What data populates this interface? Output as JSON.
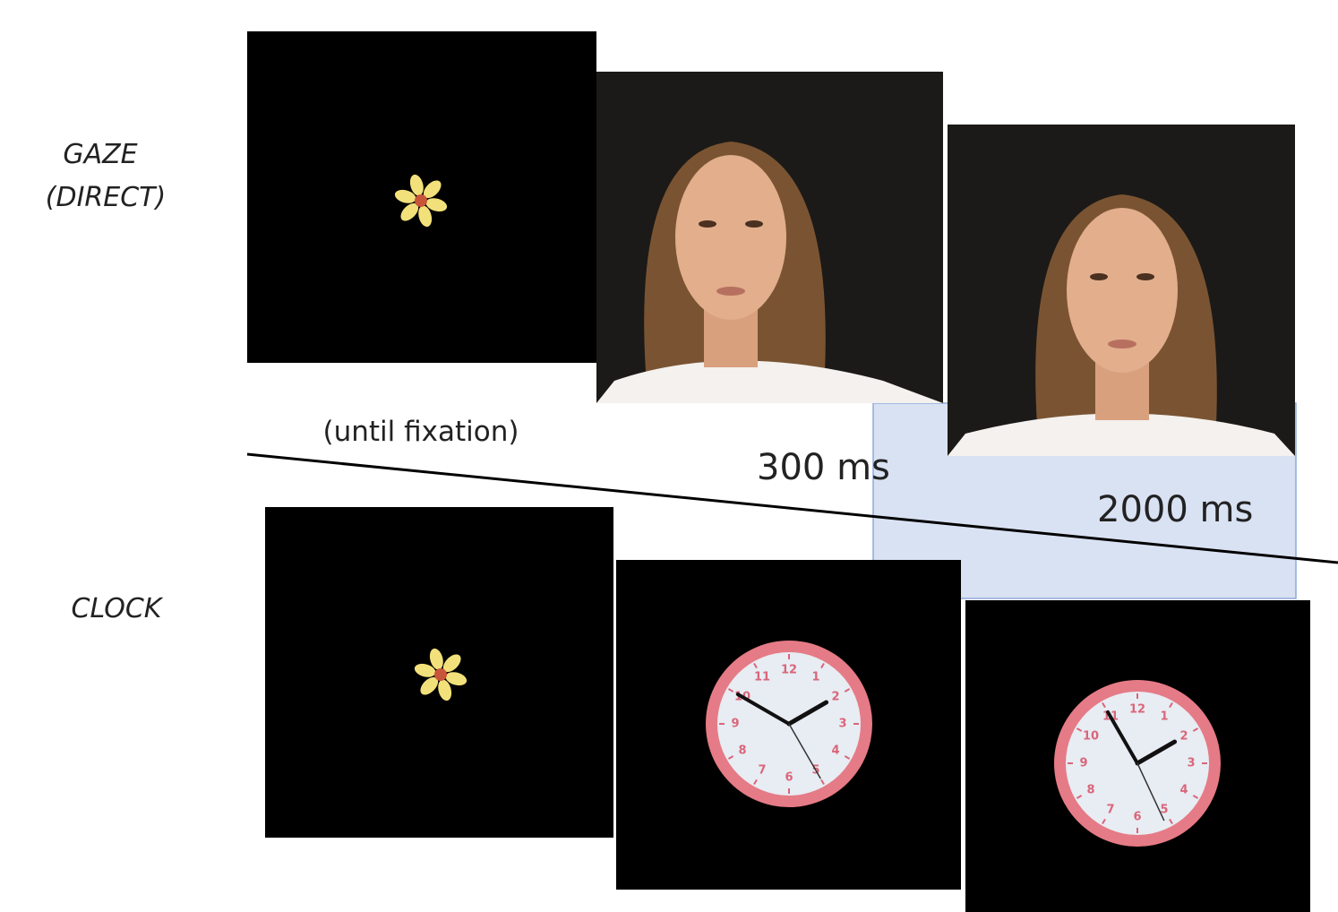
{
  "labels": {
    "gaze": [
      "GAZE",
      "(DIRECT)"
    ],
    "clock": "CLOCK"
  },
  "timings": {
    "fixation": "(until fixation)",
    "face": "300 ms",
    "response": "2000 ms"
  },
  "clock_numerals": [
    "12",
    "1",
    "2",
    "3",
    "4",
    "5",
    "6",
    "7",
    "8",
    "9",
    "10",
    "11"
  ]
}
